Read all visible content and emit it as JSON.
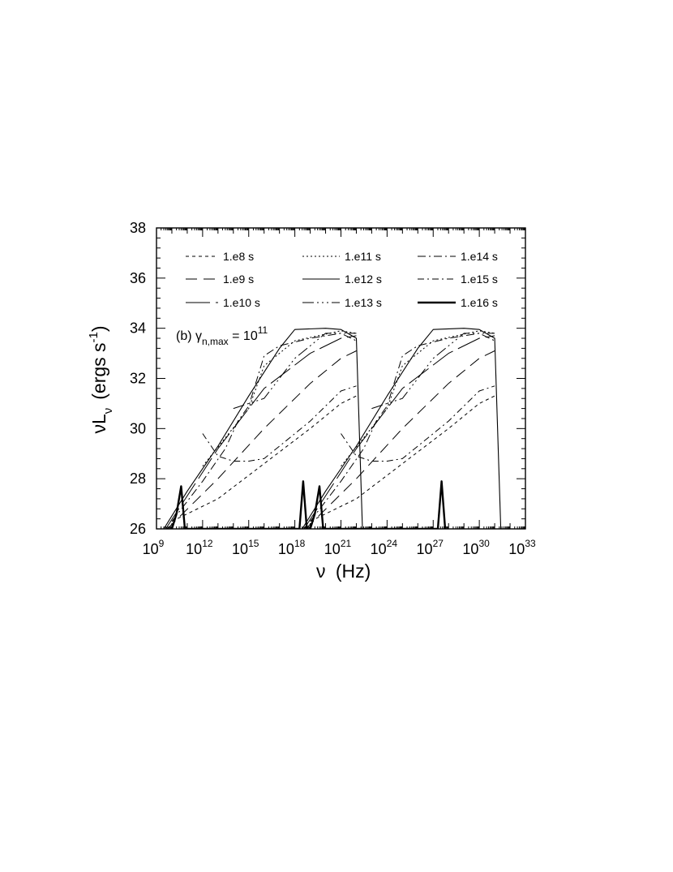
{
  "chart_data": {
    "type": "line",
    "xscale": "log",
    "xlim": [
      1000000000.0,
      1e+33
    ],
    "ylim": [
      26,
      38
    ],
    "xlabel": "ν (Hz)",
    "ylabel": "νL_ν (ergs s^-1)",
    "grid": false,
    "legend_position": "top",
    "annotation": {
      "text": "(b) γ",
      "sub": "n,max",
      "mid": " = 10",
      "sup": "11"
    },
    "x_ticks": [
      {
        "base": "10",
        "exp": "9",
        "value": 1000000000.0
      },
      {
        "base": "10",
        "exp": "12",
        "value": 1000000000000.0
      },
      {
        "base": "10",
        "exp": "15",
        "value": 1000000000000000.0
      },
      {
        "base": "10",
        "exp": "18",
        "value": 1e+18
      },
      {
        "base": "10",
        "exp": "21",
        "value": 1e+21
      },
      {
        "base": "10",
        "exp": "24",
        "value": 1e+24
      },
      {
        "base": "10",
        "exp": "27",
        "value": 1e+27
      },
      {
        "base": "10",
        "exp": "30",
        "value": 1e+30
      },
      {
        "base": "10",
        "exp": "33",
        "value": 1e+33
      }
    ],
    "y_ticks": [
      "26",
      "28",
      "30",
      "32",
      "34",
      "36",
      "38"
    ],
    "series": [
      {
        "name": "1.e8 s",
        "dash": "4,4",
        "width": 1,
        "points": [
          [
            10000000000.0,
            26.3
          ],
          [
            10000000000000.0,
            27.2
          ],
          [
            1e+16,
            28.6
          ],
          [
            1e+19,
            30.0
          ],
          [
            1e+21,
            31.0
          ],
          [
            1e+22,
            31.3
          ]
        ]
      },
      {
        "name": "1.e9 s",
        "dash": "14,8",
        "width": 1,
        "points": [
          [
            5000000000.0,
            26.0
          ],
          [
            10000000000000.0,
            28.0
          ],
          [
            1e+16,
            30.0
          ],
          [
            1e+19,
            31.8
          ],
          [
            1e+21,
            32.8
          ],
          [
            1e+22,
            33.1
          ]
        ]
      },
      {
        "name": "1.e10 s",
        "dash": "30,7",
        "width": 1,
        "points": [
          [
            4000000000.0,
            26.0
          ],
          [
            10000000000000.0,
            29.2
          ],
          [
            1e+16,
            31.6
          ],
          [
            1e+19,
            33.0
          ],
          [
            1e+21,
            33.6
          ],
          [
            1e+22,
            33.7
          ]
        ]
      },
      {
        "name": "1.e11 s",
        "dash": "2,3",
        "width": 1,
        "points": [
          [
            1000000000000.0,
            28.5
          ],
          [
            1000000000000000.0,
            30.8
          ],
          [
            1e+16,
            32.5
          ],
          [
            1e+18,
            33.5
          ],
          [
            1e+21,
            33.9
          ],
          [
            1e+22,
            33.8
          ]
        ]
      },
      {
        "name": "1.e12 s",
        "dash": "",
        "width": 1.1,
        "points": [
          [
            3000000000.0,
            26.0
          ],
          [
            100000000000.0,
            27.5
          ],
          [
            10000000000000.0,
            29.3
          ],
          [
            1000000000000000.0,
            31.3
          ],
          [
            1e+17,
            33.2
          ],
          [
            1e+18,
            33.95
          ],
          [
            1e+20,
            34.0
          ],
          [
            1e+21,
            33.95
          ],
          [
            1e+22,
            33.6
          ],
          [
            2.5e+22,
            26.0
          ]
        ]
      },
      {
        "name": "1.e13 s",
        "dash": "14,4,2,4,2,4,2,4",
        "width": 1,
        "points": [
          [
            100000000000000.0,
            30.8
          ],
          [
            1e+16,
            31.2
          ],
          [
            1e+18,
            32.8
          ],
          [
            1e+20,
            33.8
          ],
          [
            1e+22,
            33.8
          ]
        ]
      },
      {
        "name": "1.e14 s",
        "dash": "10,4,2,4",
        "width": 1,
        "points": [
          [
            10000000000.0,
            26.3
          ],
          [
            1000000000000.0,
            27.9
          ],
          [
            30000000000000.0,
            29.2
          ],
          [
            200000000000000.0,
            30.3
          ],
          [
            1000000000000000.0,
            30.9
          ],
          [
            1e+16,
            32.9
          ],
          [
            1e+17,
            33.3
          ],
          [
            1e+19,
            33.6
          ],
          [
            1e+21,
            33.8
          ],
          [
            1e+22,
            33.5
          ]
        ]
      },
      {
        "name": "1.e15 s",
        "dash": "8,4,2,4",
        "width": 1,
        "points": [
          [
            1000000000000.0,
            29.8
          ],
          [
            10000000000000.0,
            28.9
          ],
          [
            100000000000000.0,
            28.7
          ],
          [
            1000000000000000.0,
            28.7
          ],
          [
            1e+16,
            28.8
          ],
          [
            1e+17,
            29.3
          ],
          [
            1e+19,
            30.3
          ],
          [
            1e+21,
            31.5
          ],
          [
            1e+22,
            31.7
          ]
        ]
      },
      {
        "name": "1.e16 s",
        "dash": "",
        "width": 2.4,
        "points": [
          [
            10000000000.0,
            26.0
          ],
          [
            20000000000.0,
            26.6
          ],
          [
            40000000000.0,
            27.7
          ],
          [
            70000000000.0,
            26.0
          ],
          [
            2e+18,
            26.0
          ],
          [
            3.5e+18,
            27.9
          ],
          [
            6e+18,
            26.0
          ]
        ]
      }
    ]
  }
}
